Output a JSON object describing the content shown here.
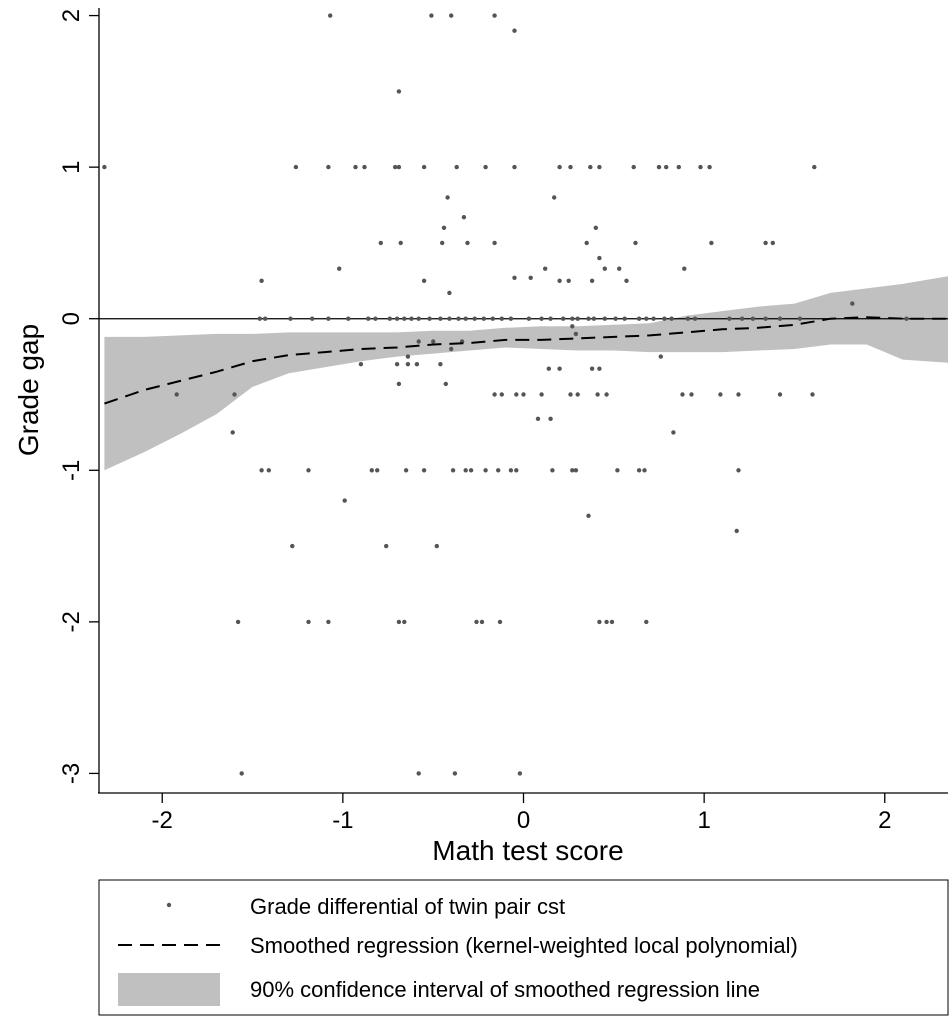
{
  "chart_data": {
    "type": "scatter",
    "xlabel": "Math test score",
    "ylabel": "Grade gap",
    "xlim": [
      -2.35,
      2.35
    ],
    "ylim": [
      -3.05,
      2.05
    ],
    "xticks": [
      -2,
      -1,
      0,
      1,
      2
    ],
    "yticks": [
      2,
      1,
      0,
      -1,
      -2,
      -3
    ],
    "xtick_labels": [
      "-2",
      "-1",
      "0",
      "1",
      "2"
    ],
    "ytick_labels": [
      "2",
      "1",
      "0",
      "-1",
      "-2",
      "-3"
    ],
    "reference_line_y": 0,
    "grid": false,
    "legend_position": "bottom",
    "colors": {
      "points": "#555555",
      "band": "#c0c0c0",
      "line": "#000000"
    },
    "series": [
      {
        "name": "Grade differential of twin pair cst",
        "kind": "scatter",
        "points": [
          [
            -2.32,
            1
          ],
          [
            -1.07,
            2
          ],
          [
            -0.51,
            2
          ],
          [
            -0.4,
            2
          ],
          [
            -0.16,
            2
          ],
          [
            -0.05,
            1.9
          ],
          [
            -0.69,
            1.5
          ],
          [
            -1.26,
            1
          ],
          [
            -1.08,
            1
          ],
          [
            -0.93,
            1
          ],
          [
            -0.88,
            1
          ],
          [
            -0.71,
            1
          ],
          [
            -0.69,
            1
          ],
          [
            -0.55,
            1
          ],
          [
            -0.37,
            1
          ],
          [
            -0.21,
            1
          ],
          [
            -0.05,
            1
          ],
          [
            0.2,
            1
          ],
          [
            0.26,
            1
          ],
          [
            0.37,
            1
          ],
          [
            0.42,
            1
          ],
          [
            0.61,
            1
          ],
          [
            0.75,
            1
          ],
          [
            0.79,
            1
          ],
          [
            0.86,
            1
          ],
          [
            0.98,
            1
          ],
          [
            1.03,
            1
          ],
          [
            1.61,
            1
          ],
          [
            -0.42,
            0.8
          ],
          [
            0.17,
            0.8
          ],
          [
            -0.33,
            0.67
          ],
          [
            -0.44,
            0.6
          ],
          [
            0.4,
            0.6
          ],
          [
            -0.79,
            0.5
          ],
          [
            -0.68,
            0.5
          ],
          [
            -0.45,
            0.5
          ],
          [
            -0.31,
            0.5
          ],
          [
            -0.16,
            0.5
          ],
          [
            0.35,
            0.5
          ],
          [
            0.62,
            0.5
          ],
          [
            1.04,
            0.5
          ],
          [
            1.34,
            0.5
          ],
          [
            1.38,
            0.5
          ],
          [
            0.42,
            0.4
          ],
          [
            -1.02,
            0.33
          ],
          [
            0.12,
            0.33
          ],
          [
            0.45,
            0.33
          ],
          [
            0.53,
            0.33
          ],
          [
            0.89,
            0.33
          ],
          [
            -0.05,
            0.27
          ],
          [
            0.04,
            0.27
          ],
          [
            0.2,
            0.25
          ],
          [
            0.38,
            0.25
          ],
          [
            0.57,
            0.25
          ],
          [
            0.25,
            0.25
          ],
          [
            -1.45,
            0.25
          ],
          [
            -0.55,
            0.25
          ],
          [
            -0.41,
            0.17
          ],
          [
            1.82,
            0.1
          ],
          [
            -1.46,
            0
          ],
          [
            -1.43,
            0
          ],
          [
            -1.29,
            0
          ],
          [
            -1.17,
            0
          ],
          [
            -1.08,
            0
          ],
          [
            -0.97,
            0
          ],
          [
            -0.86,
            0
          ],
          [
            -0.82,
            0
          ],
          [
            -0.74,
            0
          ],
          [
            -0.7,
            0
          ],
          [
            -0.66,
            0
          ],
          [
            -0.62,
            0
          ],
          [
            -0.58,
            0
          ],
          [
            -0.52,
            0
          ],
          [
            -0.46,
            0
          ],
          [
            -0.41,
            0
          ],
          [
            -0.36,
            0
          ],
          [
            -0.32,
            0
          ],
          [
            -0.27,
            0
          ],
          [
            -0.22,
            0
          ],
          [
            -0.17,
            0
          ],
          [
            -0.12,
            0
          ],
          [
            -0.07,
            0
          ],
          [
            0.03,
            0
          ],
          [
            0.1,
            0
          ],
          [
            0.15,
            0
          ],
          [
            0.22,
            0
          ],
          [
            0.27,
            0
          ],
          [
            0.3,
            0
          ],
          [
            0.36,
            0
          ],
          [
            0.39,
            0
          ],
          [
            0.45,
            0
          ],
          [
            0.51,
            0
          ],
          [
            0.56,
            0
          ],
          [
            0.64,
            0
          ],
          [
            0.68,
            0
          ],
          [
            0.72,
            0
          ],
          [
            0.78,
            0
          ],
          [
            0.82,
            0
          ],
          [
            0.91,
            0
          ],
          [
            0.95,
            0
          ],
          [
            1.14,
            0
          ],
          [
            1.21,
            0
          ],
          [
            1.27,
            0
          ],
          [
            1.34,
            0
          ],
          [
            1.42,
            0
          ],
          [
            1.53,
            0
          ],
          [
            2.12,
            0
          ],
          [
            0.27,
            -0.05
          ],
          [
            0.29,
            -0.1
          ],
          [
            -0.34,
            -0.15
          ],
          [
            -0.5,
            -0.15
          ],
          [
            -0.58,
            -0.15
          ],
          [
            -0.4,
            -0.2
          ],
          [
            0.76,
            -0.25
          ],
          [
            -0.9,
            -0.3
          ],
          [
            -0.7,
            -0.3
          ],
          [
            -0.64,
            -0.3
          ],
          [
            -0.59,
            -0.3
          ],
          [
            -0.46,
            -0.3
          ],
          [
            -0.43,
            -0.43
          ],
          [
            -0.64,
            -0.25
          ],
          [
            -0.69,
            -0.43
          ],
          [
            0.14,
            -0.33
          ],
          [
            0.2,
            -0.33
          ],
          [
            0.38,
            -0.33
          ],
          [
            0.42,
            -0.33
          ],
          [
            -1.92,
            -0.5
          ],
          [
            -1.6,
            -0.5
          ],
          [
            -0.16,
            -0.5
          ],
          [
            -0.12,
            -0.5
          ],
          [
            -0.04,
            -0.5
          ],
          [
            0.0,
            -0.5
          ],
          [
            0.1,
            -0.5
          ],
          [
            0.26,
            -0.5
          ],
          [
            0.3,
            -0.5
          ],
          [
            0.41,
            -0.5
          ],
          [
            0.46,
            -0.5
          ],
          [
            0.88,
            -0.5
          ],
          [
            0.93,
            -0.5
          ],
          [
            1.09,
            -0.5
          ],
          [
            1.19,
            -0.5
          ],
          [
            1.42,
            -0.5
          ],
          [
            1.6,
            -0.5
          ],
          [
            0.08,
            -0.66
          ],
          [
            0.15,
            -0.66
          ],
          [
            -1.61,
            -0.75
          ],
          [
            0.83,
            -0.75
          ],
          [
            -1.45,
            -1
          ],
          [
            -1.41,
            -1
          ],
          [
            -1.19,
            -1
          ],
          [
            -0.84,
            -1
          ],
          [
            -0.81,
            -1
          ],
          [
            -0.65,
            -1
          ],
          [
            -0.55,
            -1
          ],
          [
            -0.39,
            -1
          ],
          [
            -0.32,
            -1
          ],
          [
            -0.29,
            -1
          ],
          [
            -0.21,
            -1
          ],
          [
            -0.14,
            -1
          ],
          [
            -0.07,
            -1
          ],
          [
            -0.04,
            -1
          ],
          [
            0.16,
            -1
          ],
          [
            0.27,
            -1
          ],
          [
            0.29,
            -1
          ],
          [
            0.52,
            -1
          ],
          [
            0.64,
            -1
          ],
          [
            0.67,
            -1
          ],
          [
            1.19,
            -1
          ],
          [
            -0.99,
            -1.2
          ],
          [
            0.36,
            -1.3
          ],
          [
            1.18,
            -1.4
          ],
          [
            -1.28,
            -1.5
          ],
          [
            -0.76,
            -1.5
          ],
          [
            -0.48,
            -1.5
          ],
          [
            -1.58,
            -2
          ],
          [
            -1.19,
            -2
          ],
          [
            -1.08,
            -2
          ],
          [
            -0.69,
            -2
          ],
          [
            -0.66,
            -2
          ],
          [
            -0.26,
            -2
          ],
          [
            -0.23,
            -2
          ],
          [
            -0.13,
            -2
          ],
          [
            0.42,
            -2
          ],
          [
            0.46,
            -2
          ],
          [
            0.49,
            -2
          ],
          [
            0.68,
            -2
          ],
          [
            -1.56,
            -3
          ],
          [
            -0.58,
            -3
          ],
          [
            -0.38,
            -3
          ],
          [
            -0.02,
            -3
          ]
        ]
      },
      {
        "name": "Smoothed regression (kernel-weighted local polynomial)",
        "kind": "line",
        "x": [
          -2.32,
          -2.1,
          -1.9,
          -1.7,
          -1.5,
          -1.3,
          -1.1,
          -0.9,
          -0.7,
          -0.5,
          -0.3,
          -0.1,
          0.1,
          0.3,
          0.5,
          0.7,
          0.9,
          1.1,
          1.3,
          1.5,
          1.7,
          1.9,
          2.1,
          2.35
        ],
        "y": [
          -0.56,
          -0.47,
          -0.41,
          -0.35,
          -0.28,
          -0.24,
          -0.22,
          -0.2,
          -0.19,
          -0.17,
          -0.16,
          -0.14,
          -0.14,
          -0.13,
          -0.12,
          -0.11,
          -0.09,
          -0.07,
          -0.06,
          -0.04,
          0.0,
          0.01,
          0.0,
          0.0
        ]
      },
      {
        "name": "90% confidence interval of smoothed regression line",
        "kind": "band",
        "x": [
          -2.32,
          -2.1,
          -1.9,
          -1.7,
          -1.5,
          -1.3,
          -1.1,
          -0.9,
          -0.7,
          -0.5,
          -0.3,
          -0.1,
          0.1,
          0.3,
          0.5,
          0.7,
          0.9,
          1.1,
          1.3,
          1.5,
          1.7,
          1.9,
          2.1,
          2.35
        ],
        "lower": [
          -1.0,
          -0.88,
          -0.76,
          -0.63,
          -0.45,
          -0.36,
          -0.32,
          -0.28,
          -0.25,
          -0.23,
          -0.21,
          -0.19,
          -0.2,
          -0.21,
          -0.21,
          -0.22,
          -0.22,
          -0.22,
          -0.21,
          -0.2,
          -0.17,
          -0.17,
          -0.27,
          -0.29
        ],
        "upper": [
          -0.12,
          -0.12,
          -0.11,
          -0.1,
          -0.1,
          -0.09,
          -0.09,
          -0.09,
          -0.09,
          -0.08,
          -0.08,
          -0.06,
          -0.05,
          -0.05,
          -0.04,
          -0.03,
          0.02,
          0.05,
          0.08,
          0.1,
          0.17,
          0.2,
          0.23,
          0.28
        ]
      }
    ]
  }
}
